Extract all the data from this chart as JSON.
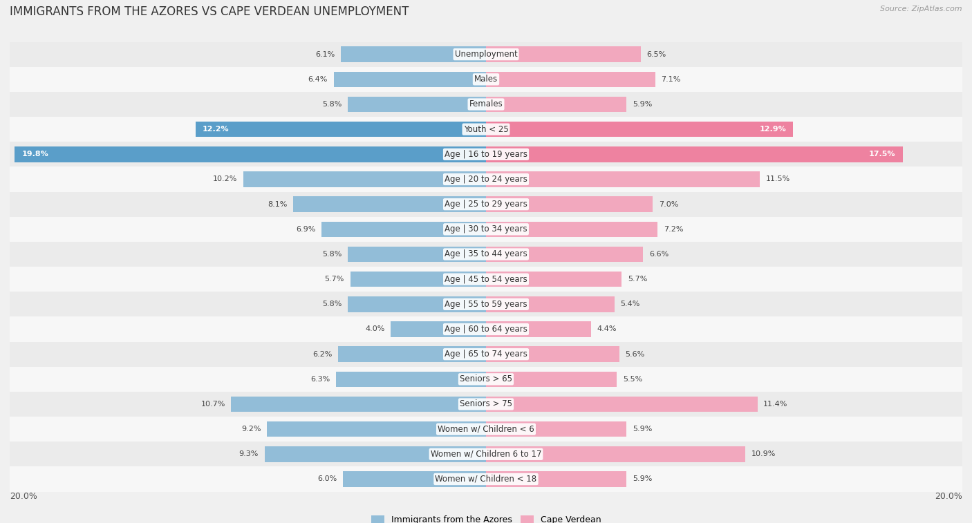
{
  "title": "IMMIGRANTS FROM THE AZORES VS CAPE VERDEAN UNEMPLOYMENT",
  "source": "Source: ZipAtlas.com",
  "categories": [
    "Unemployment",
    "Males",
    "Females",
    "Youth < 25",
    "Age | 16 to 19 years",
    "Age | 20 to 24 years",
    "Age | 25 to 29 years",
    "Age | 30 to 34 years",
    "Age | 35 to 44 years",
    "Age | 45 to 54 years",
    "Age | 55 to 59 years",
    "Age | 60 to 64 years",
    "Age | 65 to 74 years",
    "Seniors > 65",
    "Seniors > 75",
    "Women w/ Children < 6",
    "Women w/ Children 6 to 17",
    "Women w/ Children < 18"
  ],
  "azores_values": [
    6.1,
    6.4,
    5.8,
    12.2,
    19.8,
    10.2,
    8.1,
    6.9,
    5.8,
    5.7,
    5.8,
    4.0,
    6.2,
    6.3,
    10.7,
    9.2,
    9.3,
    6.0
  ],
  "capeverde_values": [
    6.5,
    7.1,
    5.9,
    12.9,
    17.5,
    11.5,
    7.0,
    7.2,
    6.6,
    5.7,
    5.4,
    4.4,
    5.6,
    5.5,
    11.4,
    5.9,
    10.9,
    5.9
  ],
  "azores_color": "#92bdd8",
  "capeverde_color": "#f2a8be",
  "azores_highlight_color": "#5a9ec9",
  "capeverde_highlight_color": "#ee82a0",
  "row_even_color": "#ebebeb",
  "row_odd_color": "#f7f7f7",
  "background_color": "#f0f0f0",
  "max_value": 20.0,
  "legend_azores": "Immigrants from the Azores",
  "legend_capeverde": "Cape Verdean",
  "title_fontsize": 12,
  "label_fontsize": 8.5,
  "value_fontsize": 8.0,
  "highlight_rows": [
    3,
    4
  ]
}
